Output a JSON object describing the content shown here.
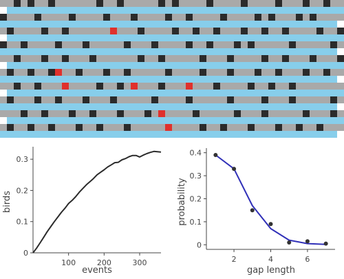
{
  "colors": {
    "lane": "#87ceeb",
    "road": "#a9a9a9",
    "car": "#2b2b2b",
    "hit_car": "#e0312c",
    "line_birds": "#2b2b2b",
    "line_prob": "#3030b8",
    "points": "#333333",
    "axis": "#444444"
  },
  "board": {
    "rows": 20,
    "cell_width": 10,
    "row_height": 10,
    "cars": [
      [
        2,
        4,
        7,
        14,
        17,
        23,
        25,
        30,
        35,
        40,
        44,
        47
      ],
      [],
      [
        0,
        5,
        10,
        15,
        19,
        24,
        27,
        32,
        37,
        39,
        43,
        45
      ],
      [],
      [
        1,
        6,
        9,
        16,
        20,
        25,
        28,
        31,
        35,
        38,
        41,
        46,
        49
      ],
      [],
      [
        0,
        3,
        8,
        12,
        18,
        22,
        27,
        30,
        34,
        36,
        42,
        48
      ],
      [],
      [
        2,
        6,
        9,
        13,
        20,
        23,
        29,
        33,
        38,
        41,
        45,
        49
      ],
      [],
      [
        1,
        4,
        7,
        11,
        15,
        18,
        24,
        29,
        33,
        37,
        40,
        44,
        47
      ],
      [],
      [
        2,
        5,
        9,
        14,
        17,
        19,
        23,
        27,
        31,
        36,
        39,
        42
      ],
      [],
      [
        1,
        5,
        8,
        12,
        16,
        22,
        27,
        33,
        38,
        42,
        48
      ],
      [],
      [
        3,
        6,
        10,
        13,
        17,
        21,
        23,
        28,
        34,
        38,
        44,
        48
      ],
      [],
      [
        1,
        4,
        7,
        11,
        14,
        18,
        24,
        29,
        32,
        36,
        40,
        43,
        46
      ],
      []
    ],
    "hit_cars": [
      [
        4,
        16
      ],
      [
        10,
        8
      ],
      [
        12,
        9
      ],
      [
        12,
        19
      ],
      [
        12,
        27
      ],
      [
        16,
        23
      ],
      [
        18,
        24
      ]
    ]
  },
  "chart_data": [
    {
      "type": "line",
      "xlabel": "events",
      "ylabel": "birds",
      "xlim": [
        0,
        360
      ],
      "ylim": [
        0,
        0.34
      ],
      "xticks": [
        100,
        200,
        300
      ],
      "yticks": [
        0,
        0.1,
        0.2,
        0.3
      ],
      "ytick_labels": [
        "0",
        "0.1",
        "0.2",
        "0.3"
      ],
      "series": [
        {
          "x": [
            0,
            10,
            20,
            30,
            40,
            50,
            60,
            70,
            80,
            90,
            100,
            110,
            120,
            130,
            140,
            150,
            160,
            170,
            180,
            190,
            200,
            210,
            220,
            230,
            240,
            250,
            260,
            270,
            280,
            290,
            300,
            310,
            320,
            330,
            340,
            350,
            360
          ],
          "y": [
            0,
            0.015,
            0.032,
            0.05,
            0.068,
            0.084,
            0.1,
            0.115,
            0.13,
            0.143,
            0.158,
            0.168,
            0.18,
            0.194,
            0.206,
            0.218,
            0.228,
            0.238,
            0.25,
            0.258,
            0.266,
            0.275,
            0.282,
            0.289,
            0.29,
            0.298,
            0.302,
            0.308,
            0.312,
            0.312,
            0.307,
            0.313,
            0.318,
            0.322,
            0.325,
            0.324,
            0.323
          ]
        }
      ]
    },
    {
      "type": "line",
      "xlabel": "gap length",
      "ylabel": "probability",
      "xlim": [
        0.5,
        7.5
      ],
      "ylim": [
        -0.02,
        0.42
      ],
      "xticks": [
        2,
        4,
        6
      ],
      "yticks": [
        0,
        0.1,
        0.2,
        0.3,
        0.4
      ],
      "ytick_labels": [
        "0",
        "0.1",
        "0.2",
        "0.3",
        "0.4"
      ],
      "series": [
        {
          "x": [
            1,
            2,
            3,
            4,
            5,
            6,
            7
          ],
          "y": [
            0.39,
            0.33,
            0.17,
            0.07,
            0.02,
            0.005,
            0.002
          ]
        },
        {
          "x": [
            1,
            2,
            3,
            4,
            5,
            6,
            7
          ],
          "y": [
            0.39,
            0.33,
            0.15,
            0.09,
            0.01,
            0.015,
            0.005
          ]
        }
      ]
    }
  ]
}
